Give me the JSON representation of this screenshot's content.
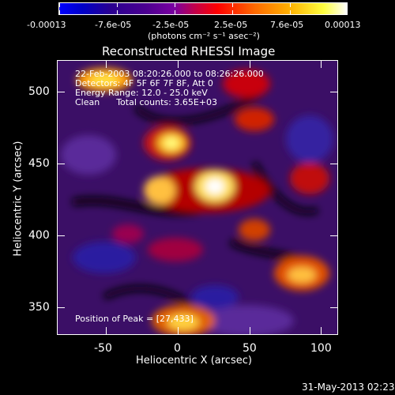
{
  "colorbar": {
    "ticks": [
      "-0.00013",
      "-7.6e-05",
      "-2.5e-05",
      "2.5e-05",
      "7.6e-05",
      "0.00013"
    ],
    "units": "(photons cm⁻² s⁻¹ asec⁻²)"
  },
  "image": {
    "title": "Reconstructed RHESSI Image",
    "info_lines": [
      "22-Feb-2003 08:20:26.000 to 08:26:26.000",
      "Detectors: 4F 5F 6F 7F 8F, Att 0",
      "Energy Range: 12.0 - 25.0 keV",
      "Clean      Total counts: 3.65E+03"
    ],
    "peak_label": "Position of Peak = [27,433]"
  },
  "axes": {
    "xlabel": "Heliocentric X (arcsec)",
    "ylabel": "Heliocentric Y (arcsec)",
    "xticks": [
      "-50",
      "0",
      "50",
      "100"
    ],
    "yticks": [
      "500",
      "450",
      "400",
      "350"
    ]
  },
  "footer": {
    "timestamp": "31-May-2013 02:23"
  }
}
